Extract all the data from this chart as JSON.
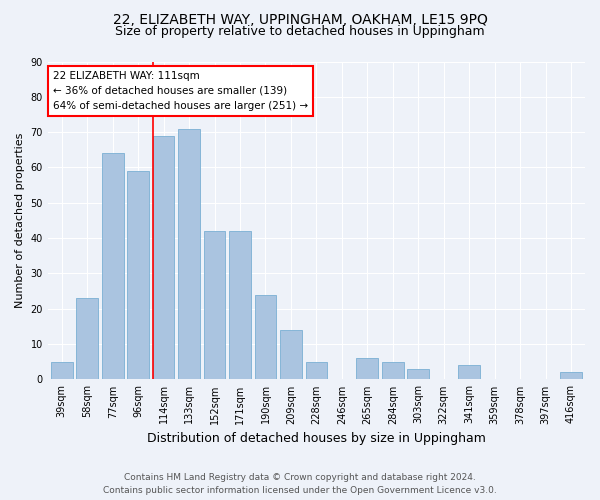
{
  "title": "22, ELIZABETH WAY, UPPINGHAM, OAKHAM, LE15 9PQ",
  "subtitle": "Size of property relative to detached houses in Uppingham",
  "xlabel": "Distribution of detached houses by size in Uppingham",
  "ylabel": "Number of detached properties",
  "categories": [
    "39sqm",
    "58sqm",
    "77sqm",
    "96sqm",
    "114sqm",
    "133sqm",
    "152sqm",
    "171sqm",
    "190sqm",
    "209sqm",
    "228sqm",
    "246sqm",
    "265sqm",
    "284sqm",
    "303sqm",
    "322sqm",
    "341sqm",
    "359sqm",
    "378sqm",
    "397sqm",
    "416sqm"
  ],
  "values": [
    5,
    23,
    64,
    59,
    69,
    71,
    42,
    42,
    24,
    14,
    5,
    0,
    6,
    5,
    3,
    0,
    4,
    0,
    0,
    0,
    2
  ],
  "bar_color": "#aac4e0",
  "bar_edge_color": "#7aafd4",
  "annotation_line1": "22 ELIZABETH WAY: 111sqm",
  "annotation_line2": "← 36% of detached houses are smaller (139)",
  "annotation_line3": "64% of semi-detached houses are larger (251) →",
  "ylim": [
    0,
    90
  ],
  "yticks": [
    0,
    10,
    20,
    30,
    40,
    50,
    60,
    70,
    80,
    90
  ],
  "footer1": "Contains HM Land Registry data © Crown copyright and database right 2024.",
  "footer2": "Contains public sector information licensed under the Open Government Licence v3.0.",
  "background_color": "#eef2f9",
  "grid_color": "#ffffff",
  "title_fontsize": 10,
  "subtitle_fontsize": 9,
  "xlabel_fontsize": 9,
  "ylabel_fontsize": 8,
  "tick_fontsize": 7,
  "footer_fontsize": 6.5,
  "annot_fontsize": 7.5
}
